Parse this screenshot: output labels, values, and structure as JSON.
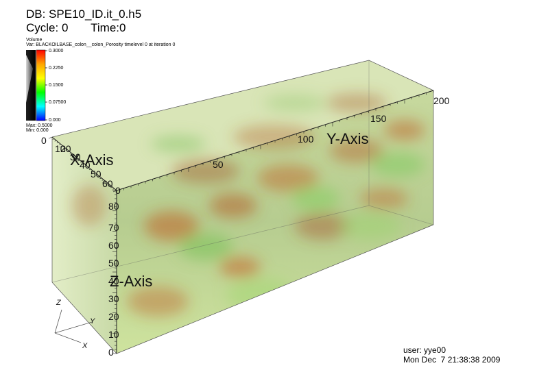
{
  "header": {
    "db": "DB: SPE10_ID.it_0.h5",
    "cycle": "Cycle: 0",
    "time": "Time:0"
  },
  "legend": {
    "title": "Volume",
    "variable": "Var: BLACKOILBASE_colon__colon_Porosity timelevel 0 at iteration 0",
    "ticks": [
      "0.3000",
      "0.2250",
      "0.1500",
      "0.07500",
      "0.000"
    ],
    "max": "Max: 0.5000",
    "min": "Min: 0.000"
  },
  "axes": {
    "x_title": "X-Axis",
    "y_title": "Y-Axis",
    "z_title": "Z-Axis",
    "x_ticks": [
      "0",
      "10",
      "20",
      "30",
      "40",
      "50",
      "60"
    ],
    "y_ticks": [
      "0",
      "50",
      "100",
      "150",
      "200"
    ],
    "z_ticks": [
      "0",
      "10",
      "20",
      "30",
      "40",
      "50",
      "60",
      "70",
      "80"
    ]
  },
  "triad": {
    "z": "Z",
    "y": "Y",
    "x": "X"
  },
  "footer": {
    "user": "user: yye00",
    "date": "Mon Dec  7 21:38:38 2009"
  },
  "colors": {
    "volume_green": "#8dc63f",
    "volume_orange": "#c0692d",
    "colormap": [
      "#ff0000",
      "#ffa500",
      "#ffff00",
      "#00ff00",
      "#00ffff",
      "#0000ff"
    ]
  }
}
